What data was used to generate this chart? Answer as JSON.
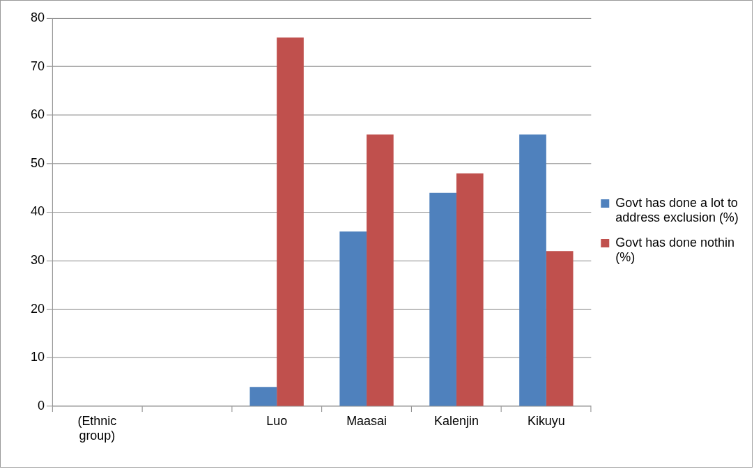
{
  "chart_data": {
    "type": "bar",
    "categories": [
      "(Ethnic group)",
      null,
      "Luo",
      "Maasai",
      "Kalenjin",
      "Kikuyu"
    ],
    "series": [
      {
        "name": "Govt has done a lot to address exclusion (%)",
        "color": "#4f81bd",
        "values": [
          null,
          null,
          4,
          36,
          44,
          56
        ]
      },
      {
        "name": "Govt has done nothin (%)",
        "color": "#c0504d",
        "values": [
          null,
          null,
          76,
          56,
          48,
          32
        ]
      }
    ],
    "ylim": [
      0,
      80
    ],
    "yticks": [
      0,
      10,
      20,
      30,
      40,
      50,
      60,
      70,
      80
    ],
    "grid": "y",
    "legend": "right"
  }
}
